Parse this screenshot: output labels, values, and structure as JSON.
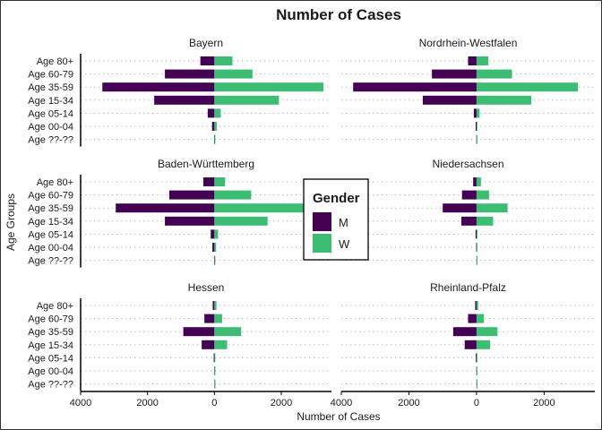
{
  "chart_data": {
    "type": "bar",
    "orientation": "horizontal",
    "title": "Number of Cases",
    "xlabel": "Number of Cases",
    "ylabel": "Age Groups",
    "categories": [
      "Age 80+",
      "Age 60-79",
      "Age 35-59",
      "Age 15-34",
      "Age 05-14",
      "Age 00-04",
      "Age ??-??"
    ],
    "xlim": [
      -4000,
      3500
    ],
    "xticks": [
      -4000,
      -2000,
      0,
      2000
    ],
    "xtick_labels": [
      "4000",
      "2000",
      "0",
      "2000"
    ],
    "grid": true,
    "legend": {
      "title": "Gender",
      "placement": "center",
      "entries": [
        {
          "label": "M",
          "color": "#440154"
        },
        {
          "label": "W",
          "color": "#3dbc74"
        }
      ]
    },
    "panels": [
      {
        "name": "Bayern",
        "series": [
          {
            "name": "M",
            "values": [
              420,
              1480,
              3350,
              1800,
              200,
              70,
              10
            ]
          },
          {
            "name": "W",
            "values": [
              540,
              1140,
              3260,
              1930,
              190,
              70,
              15
            ]
          }
        ]
      },
      {
        "name": "Nordrhein-Westfalen",
        "series": [
          {
            "name": "M",
            "values": [
              250,
              1320,
              3650,
              1590,
              80,
              25,
              5
            ]
          },
          {
            "name": "W",
            "values": [
              350,
              1050,
              3000,
              1620,
              90,
              25,
              5
            ]
          }
        ]
      },
      {
        "name": "Baden-Württemberg",
        "series": [
          {
            "name": "M",
            "values": [
              330,
              1350,
              2950,
              1480,
              110,
              60,
              10
            ]
          },
          {
            "name": "W",
            "values": [
              320,
              1100,
              3150,
              1590,
              110,
              50,
              10
            ]
          }
        ]
      },
      {
        "name": "Niedersachsen",
        "series": [
          {
            "name": "M",
            "values": [
              100,
              430,
              1000,
              450,
              30,
              10,
              2
            ]
          },
          {
            "name": "W",
            "values": [
              130,
              370,
              920,
              490,
              30,
              10,
              2
            ]
          }
        ]
      },
      {
        "name": "Hessen",
        "series": [
          {
            "name": "M",
            "values": [
              50,
              300,
              930,
              380,
              20,
              5,
              2
            ]
          },
          {
            "name": "W",
            "values": [
              60,
              230,
              800,
              380,
              20,
              5,
              2
            ]
          }
        ]
      },
      {
        "name": "Rheinland-Pfalz",
        "series": [
          {
            "name": "M",
            "values": [
              40,
              250,
              690,
              350,
              20,
              5,
              2
            ]
          },
          {
            "name": "W",
            "values": [
              50,
              220,
              620,
              400,
              20,
              5,
              2
            ]
          }
        ]
      }
    ]
  }
}
